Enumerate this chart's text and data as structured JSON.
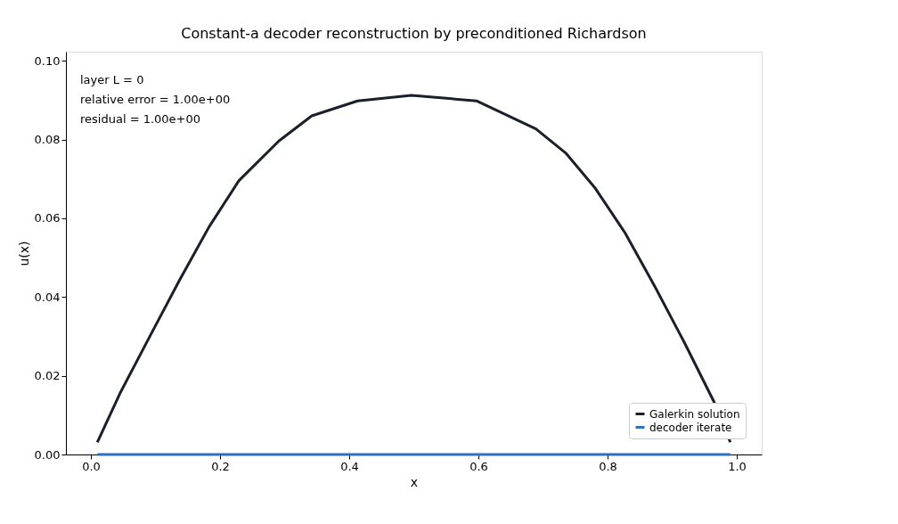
{
  "chart_data": {
    "type": "line",
    "title": "Constant-a decoder reconstruction by preconditioned Richardson",
    "xlabel": "x",
    "ylabel": "u(x)",
    "annotations": [
      "layer L = 0",
      "relative error = 1.00e+00",
      "residual = 1.00e+00"
    ],
    "series": [
      {
        "name": "Galerkin solution",
        "color": "#1b1f2a",
        "x": [
          0.01,
          0.045,
          0.091,
          0.137,
          0.183,
          0.229,
          0.291,
          0.342,
          0.413,
          0.496,
          0.505,
          0.597,
          0.689,
          0.735,
          0.781,
          0.827,
          0.873,
          0.919,
          0.965,
          0.99
        ],
        "values": [
          0.0031,
          0.0155,
          0.0299,
          0.0442,
          0.0578,
          0.0695,
          0.0796,
          0.086,
          0.0898,
          0.0912,
          0.0911,
          0.0898,
          0.0827,
          0.0766,
          0.0676,
          0.0563,
          0.0427,
          0.0284,
          0.0133,
          0.0031
        ]
      },
      {
        "name": "decoder iterate",
        "color": "#2f6fbf",
        "x": [
          0.01,
          0.99
        ],
        "values": [
          0,
          0
        ]
      }
    ],
    "xlim": [
      -0.0386,
      1.0386
    ],
    "ylim": [
      0,
      0.1023
    ],
    "xticks": [
      {
        "value": 0,
        "label": "0.0"
      },
      0.2,
      0.4,
      0.6,
      0.8,
      {
        "value": 1,
        "label": "1.0"
      }
    ],
    "yticks": [
      {
        "value": 0,
        "label": "0.00"
      },
      0.02,
      0.04,
      0.06,
      0.08,
      {
        "value": 0.1,
        "label": "0.10"
      }
    ],
    "grid": false,
    "legend": "bottom right",
    "line_style": "solid",
    "marker": "none"
  }
}
